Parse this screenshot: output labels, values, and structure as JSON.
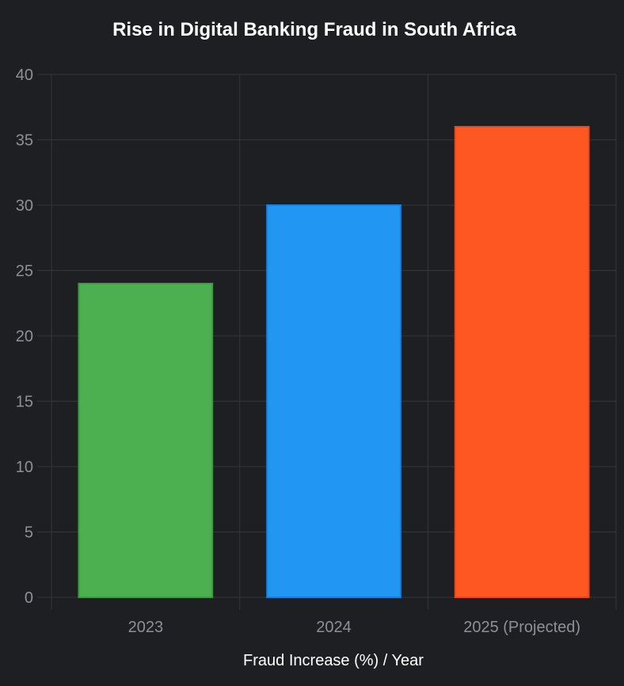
{
  "chart_data": {
    "type": "bar",
    "title": "Rise in Digital Banking Fraud in South Africa",
    "xlabel": "Fraud Increase (%) / Year",
    "ylabel": "",
    "categories": [
      "2023",
      "2024",
      "2025 (Projected)"
    ],
    "values": [
      24,
      30,
      36
    ],
    "colors": [
      "#4caf50",
      "#2196f3",
      "#ff5722"
    ],
    "border_colors": [
      "#3e9a43",
      "#1a7fd6",
      "#e44a1b"
    ],
    "ylim": [
      0,
      40
    ],
    "yticks": [
      "0",
      "5",
      "10",
      "15",
      "20",
      "25",
      "30",
      "35",
      "40"
    ],
    "grid": true,
    "legend": "none"
  }
}
